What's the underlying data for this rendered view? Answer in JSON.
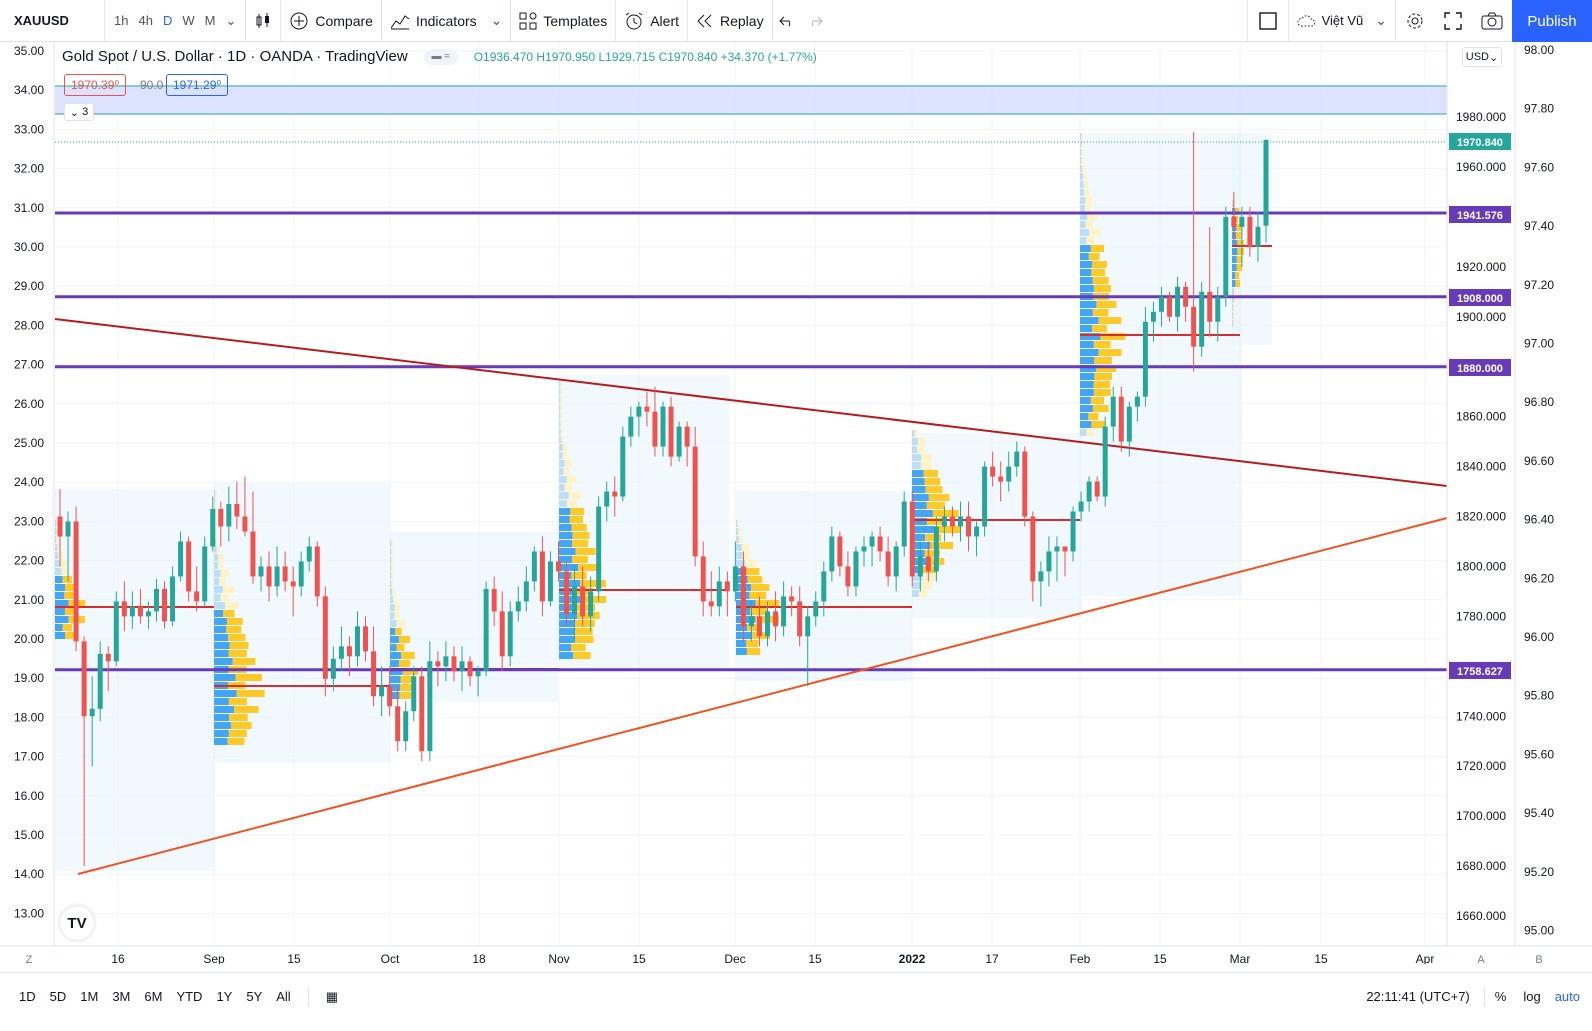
{
  "toolbar": {
    "symbol": "XAUUSD",
    "intervals": [
      "1h",
      "4h",
      "D",
      "W",
      "M"
    ],
    "active_interval": "D",
    "compare_label": "Compare",
    "indicators_label": "Indicators",
    "templates_label": "Templates",
    "alert_label": "Alert",
    "replay_label": "Replay",
    "account_label": "Việt Vũ",
    "publish_label": "Publish"
  },
  "legend": {
    "name": "Gold Spot / U.S. Dollar · 1D · OANDA · TradingView",
    "open": "O1936.470",
    "high": "H1970.950",
    "low": "L1929.715",
    "close": "C1970.840",
    "change": "+34.370 (+1.77%)",
    "bid": "1970.39⁰",
    "spread": "90.0",
    "ask": "1971.29⁰",
    "collapse_count": "3"
  },
  "currency_button": "USD",
  "colors": {
    "up": "#26a69a",
    "down": "#ef5350",
    "level_line": "#673ab7",
    "trend_upper": "#b71c1c",
    "trend_lower": "#f4511e",
    "accent": "#2962ff"
  },
  "axes": {
    "left_ticks": [
      "35.00",
      "34.00",
      "33.00",
      "32.00",
      "31.00",
      "30.00",
      "29.00",
      "28.00",
      "27.00",
      "26.00",
      "25.00",
      "24.00",
      "23.00",
      "22.00",
      "21.00",
      "20.00",
      "19.00",
      "18.00",
      "17.00",
      "16.00",
      "15.00",
      "14.00",
      "13.00"
    ],
    "right_outer_ticks": [
      "98.00",
      "97.80",
      "97.60",
      "97.40",
      "97.20",
      "97.00",
      "96.80",
      "96.60",
      "96.40",
      "96.20",
      "96.00",
      "95.80",
      "95.60",
      "95.40",
      "95.20",
      "95.00"
    ],
    "price_ticks": [
      "1980.000",
      "1960.000",
      "1920.000",
      "1900.000",
      "1860.000",
      "1840.000",
      "1820.000",
      "1800.000",
      "1780.000",
      "1760.000",
      "1740.000",
      "1720.000",
      "1700.000",
      "1680.000",
      "1660.000"
    ],
    "time_ticks": [
      "16",
      "Sep",
      "15",
      "Oct",
      "18",
      "Nov",
      "15",
      "Dec",
      "15",
      "2022",
      "17",
      "Feb",
      "15",
      "Mar",
      "15",
      "Apr"
    ],
    "left_corner": "Z",
    "right_corner_a": "A",
    "right_corner_b": "B"
  },
  "price_labels": {
    "last": "1970.840",
    "l1941": "1941.576",
    "l1908": "1908.000",
    "l1880": "1880.000",
    "l1758": "1758.627"
  },
  "chart_data": {
    "type": "candlestick",
    "title": "Gold Spot / U.S. Dollar · 1D · OANDA · TradingView",
    "ylim": [
      1650,
      2000
    ],
    "horizontal_levels": [
      1941.576,
      1908.0,
      1880.0,
      1758.627
    ],
    "candles": [
      {
        "o": 1820,
        "h": 1831,
        "l": 1800,
        "c": 1812
      },
      {
        "o": 1812,
        "h": 1822,
        "l": 1794,
        "c": 1818
      },
      {
        "o": 1818,
        "h": 1824,
        "l": 1766,
        "c": 1770
      },
      {
        "o": 1770,
        "h": 1772,
        "l": 1680,
        "c": 1740
      },
      {
        "o": 1740,
        "h": 1756,
        "l": 1720,
        "c": 1743
      },
      {
        "o": 1743,
        "h": 1770,
        "l": 1738,
        "c": 1765
      },
      {
        "o": 1765,
        "h": 1768,
        "l": 1750,
        "c": 1762
      },
      {
        "o": 1762,
        "h": 1790,
        "l": 1760,
        "c": 1786
      },
      {
        "o": 1786,
        "h": 1794,
        "l": 1774,
        "c": 1780
      },
      {
        "o": 1780,
        "h": 1790,
        "l": 1775,
        "c": 1784
      },
      {
        "o": 1784,
        "h": 1791,
        "l": 1777,
        "c": 1780
      },
      {
        "o": 1780,
        "h": 1786,
        "l": 1775,
        "c": 1782
      },
      {
        "o": 1782,
        "h": 1795,
        "l": 1778,
        "c": 1791
      },
      {
        "o": 1791,
        "h": 1794,
        "l": 1775,
        "c": 1778
      },
      {
        "o": 1778,
        "h": 1800,
        "l": 1776,
        "c": 1796
      },
      {
        "o": 1796,
        "h": 1814,
        "l": 1794,
        "c": 1810
      },
      {
        "o": 1810,
        "h": 1812,
        "l": 1786,
        "c": 1790
      },
      {
        "o": 1790,
        "h": 1800,
        "l": 1782,
        "c": 1786
      },
      {
        "o": 1786,
        "h": 1812,
        "l": 1784,
        "c": 1808
      },
      {
        "o": 1808,
        "h": 1828,
        "l": 1806,
        "c": 1823
      },
      {
        "o": 1823,
        "h": 1826,
        "l": 1808,
        "c": 1816
      },
      {
        "o": 1816,
        "h": 1832,
        "l": 1810,
        "c": 1825
      },
      {
        "o": 1825,
        "h": 1834,
        "l": 1815,
        "c": 1820
      },
      {
        "o": 1820,
        "h": 1836,
        "l": 1812,
        "c": 1814
      },
      {
        "o": 1814,
        "h": 1830,
        "l": 1793,
        "c": 1796
      },
      {
        "o": 1796,
        "h": 1804,
        "l": 1790,
        "c": 1800
      },
      {
        "o": 1800,
        "h": 1806,
        "l": 1786,
        "c": 1792
      },
      {
        "o": 1792,
        "h": 1808,
        "l": 1788,
        "c": 1800
      },
      {
        "o": 1800,
        "h": 1806,
        "l": 1790,
        "c": 1794
      },
      {
        "o": 1794,
        "h": 1800,
        "l": 1780,
        "c": 1792
      },
      {
        "o": 1792,
        "h": 1806,
        "l": 1788,
        "c": 1802
      },
      {
        "o": 1802,
        "h": 1812,
        "l": 1798,
        "c": 1808
      },
      {
        "o": 1808,
        "h": 1810,
        "l": 1784,
        "c": 1788
      },
      {
        "o": 1788,
        "h": 1792,
        "l": 1748,
        "c": 1755
      },
      {
        "o": 1755,
        "h": 1768,
        "l": 1750,
        "c": 1763
      },
      {
        "o": 1763,
        "h": 1776,
        "l": 1758,
        "c": 1768
      },
      {
        "o": 1768,
        "h": 1772,
        "l": 1756,
        "c": 1764
      },
      {
        "o": 1764,
        "h": 1782,
        "l": 1760,
        "c": 1776
      },
      {
        "o": 1776,
        "h": 1780,
        "l": 1762,
        "c": 1766
      },
      {
        "o": 1766,
        "h": 1776,
        "l": 1744,
        "c": 1748
      },
      {
        "o": 1748,
        "h": 1760,
        "l": 1740,
        "c": 1752
      },
      {
        "o": 1752,
        "h": 1760,
        "l": 1740,
        "c": 1744
      },
      {
        "o": 1744,
        "h": 1752,
        "l": 1726,
        "c": 1730
      },
      {
        "o": 1730,
        "h": 1746,
        "l": 1726,
        "c": 1742
      },
      {
        "o": 1742,
        "h": 1760,
        "l": 1738,
        "c": 1756
      },
      {
        "o": 1756,
        "h": 1760,
        "l": 1722,
        "c": 1726
      },
      {
        "o": 1726,
        "h": 1770,
        "l": 1722,
        "c": 1762
      },
      {
        "o": 1762,
        "h": 1766,
        "l": 1752,
        "c": 1760
      },
      {
        "o": 1760,
        "h": 1770,
        "l": 1754,
        "c": 1764
      },
      {
        "o": 1764,
        "h": 1768,
        "l": 1754,
        "c": 1758
      },
      {
        "o": 1758,
        "h": 1768,
        "l": 1750,
        "c": 1762
      },
      {
        "o": 1762,
        "h": 1764,
        "l": 1752,
        "c": 1756
      },
      {
        "o": 1756,
        "h": 1760,
        "l": 1748,
        "c": 1758
      },
      {
        "o": 1758,
        "h": 1794,
        "l": 1756,
        "c": 1791
      },
      {
        "o": 1791,
        "h": 1796,
        "l": 1776,
        "c": 1782
      },
      {
        "o": 1782,
        "h": 1790,
        "l": 1758,
        "c": 1764
      },
      {
        "o": 1764,
        "h": 1786,
        "l": 1760,
        "c": 1782
      },
      {
        "o": 1782,
        "h": 1792,
        "l": 1778,
        "c": 1786
      },
      {
        "o": 1786,
        "h": 1800,
        "l": 1782,
        "c": 1794
      },
      {
        "o": 1794,
        "h": 1808,
        "l": 1790,
        "c": 1806
      },
      {
        "o": 1806,
        "h": 1812,
        "l": 1780,
        "c": 1786
      },
      {
        "o": 1786,
        "h": 1806,
        "l": 1784,
        "c": 1802
      },
      {
        "o": 1802,
        "h": 1810,
        "l": 1794,
        "c": 1798
      },
      {
        "o": 1798,
        "h": 1802,
        "l": 1776,
        "c": 1781
      },
      {
        "o": 1781,
        "h": 1800,
        "l": 1770,
        "c": 1792
      },
      {
        "o": 1792,
        "h": 1800,
        "l": 1776,
        "c": 1780
      },
      {
        "o": 1780,
        "h": 1796,
        "l": 1774,
        "c": 1790
      },
      {
        "o": 1790,
        "h": 1828,
        "l": 1786,
        "c": 1824
      },
      {
        "o": 1824,
        "h": 1834,
        "l": 1818,
        "c": 1830
      },
      {
        "o": 1830,
        "h": 1836,
        "l": 1820,
        "c": 1828
      },
      {
        "o": 1828,
        "h": 1856,
        "l": 1826,
        "c": 1852
      },
      {
        "o": 1852,
        "h": 1864,
        "l": 1848,
        "c": 1860
      },
      {
        "o": 1860,
        "h": 1866,
        "l": 1852,
        "c": 1864
      },
      {
        "o": 1864,
        "h": 1870,
        "l": 1856,
        "c": 1862
      },
      {
        "o": 1862,
        "h": 1872,
        "l": 1844,
        "c": 1848
      },
      {
        "o": 1848,
        "h": 1866,
        "l": 1844,
        "c": 1864
      },
      {
        "o": 1864,
        "h": 1868,
        "l": 1840,
        "c": 1844
      },
      {
        "o": 1844,
        "h": 1858,
        "l": 1842,
        "c": 1856
      },
      {
        "o": 1856,
        "h": 1858,
        "l": 1840,
        "c": 1848
      },
      {
        "o": 1848,
        "h": 1856,
        "l": 1800,
        "c": 1804
      },
      {
        "o": 1804,
        "h": 1810,
        "l": 1780,
        "c": 1786
      },
      {
        "o": 1786,
        "h": 1798,
        "l": 1780,
        "c": 1784
      },
      {
        "o": 1784,
        "h": 1800,
        "l": 1780,
        "c": 1794
      },
      {
        "o": 1794,
        "h": 1798,
        "l": 1780,
        "c": 1790
      },
      {
        "o": 1790,
        "h": 1810,
        "l": 1786,
        "c": 1800
      },
      {
        "o": 1800,
        "h": 1806,
        "l": 1770,
        "c": 1776
      },
      {
        "o": 1776,
        "h": 1786,
        "l": 1770,
        "c": 1780
      },
      {
        "o": 1780,
        "h": 1788,
        "l": 1768,
        "c": 1772
      },
      {
        "o": 1772,
        "h": 1786,
        "l": 1768,
        "c": 1782
      },
      {
        "o": 1782,
        "h": 1790,
        "l": 1770,
        "c": 1776
      },
      {
        "o": 1776,
        "h": 1794,
        "l": 1772,
        "c": 1788
      },
      {
        "o": 1788,
        "h": 1792,
        "l": 1780,
        "c": 1786
      },
      {
        "o": 1786,
        "h": 1792,
        "l": 1768,
        "c": 1772
      },
      {
        "o": 1772,
        "h": 1784,
        "l": 1752,
        "c": 1780
      },
      {
        "o": 1780,
        "h": 1790,
        "l": 1776,
        "c": 1786
      },
      {
        "o": 1786,
        "h": 1802,
        "l": 1780,
        "c": 1798
      },
      {
        "o": 1798,
        "h": 1816,
        "l": 1794,
        "c": 1812
      },
      {
        "o": 1812,
        "h": 1814,
        "l": 1796,
        "c": 1800
      },
      {
        "o": 1800,
        "h": 1806,
        "l": 1788,
        "c": 1792
      },
      {
        "o": 1792,
        "h": 1808,
        "l": 1788,
        "c": 1806
      },
      {
        "o": 1806,
        "h": 1812,
        "l": 1800,
        "c": 1808
      },
      {
        "o": 1808,
        "h": 1814,
        "l": 1800,
        "c": 1812
      },
      {
        "o": 1812,
        "h": 1816,
        "l": 1802,
        "c": 1806
      },
      {
        "o": 1806,
        "h": 1812,
        "l": 1792,
        "c": 1796
      },
      {
        "o": 1796,
        "h": 1810,
        "l": 1790,
        "c": 1808
      },
      {
        "o": 1808,
        "h": 1830,
        "l": 1804,
        "c": 1826
      },
      {
        "o": 1826,
        "h": 1830,
        "l": 1792,
        "c": 1796
      },
      {
        "o": 1796,
        "h": 1810,
        "l": 1790,
        "c": 1804
      },
      {
        "o": 1804,
        "h": 1810,
        "l": 1794,
        "c": 1798
      },
      {
        "o": 1798,
        "h": 1820,
        "l": 1794,
        "c": 1816
      },
      {
        "o": 1816,
        "h": 1824,
        "l": 1810,
        "c": 1820
      },
      {
        "o": 1820,
        "h": 1824,
        "l": 1812,
        "c": 1816
      },
      {
        "o": 1816,
        "h": 1826,
        "l": 1810,
        "c": 1820
      },
      {
        "o": 1820,
        "h": 1826,
        "l": 1806,
        "c": 1812
      },
      {
        "o": 1812,
        "h": 1818,
        "l": 1804,
        "c": 1816
      },
      {
        "o": 1816,
        "h": 1842,
        "l": 1812,
        "c": 1840
      },
      {
        "o": 1840,
        "h": 1846,
        "l": 1832,
        "c": 1836
      },
      {
        "o": 1836,
        "h": 1842,
        "l": 1826,
        "c": 1834
      },
      {
        "o": 1834,
        "h": 1846,
        "l": 1830,
        "c": 1840
      },
      {
        "o": 1840,
        "h": 1850,
        "l": 1836,
        "c": 1846
      },
      {
        "o": 1846,
        "h": 1848,
        "l": 1816,
        "c": 1820
      },
      {
        "o": 1820,
        "h": 1822,
        "l": 1786,
        "c": 1794
      },
      {
        "o": 1794,
        "h": 1802,
        "l": 1784,
        "c": 1798
      },
      {
        "o": 1798,
        "h": 1812,
        "l": 1792,
        "c": 1806
      },
      {
        "o": 1806,
        "h": 1812,
        "l": 1794,
        "c": 1808
      },
      {
        "o": 1808,
        "h": 1808,
        "l": 1796,
        "c": 1806
      },
      {
        "o": 1806,
        "h": 1824,
        "l": 1802,
        "c": 1822
      },
      {
        "o": 1822,
        "h": 1830,
        "l": 1818,
        "c": 1826
      },
      {
        "o": 1826,
        "h": 1836,
        "l": 1822,
        "c": 1834
      },
      {
        "o": 1834,
        "h": 1836,
        "l": 1826,
        "c": 1828
      },
      {
        "o": 1828,
        "h": 1860,
        "l": 1824,
        "c": 1856
      },
      {
        "o": 1856,
        "h": 1872,
        "l": 1850,
        "c": 1868
      },
      {
        "o": 1868,
        "h": 1872,
        "l": 1846,
        "c": 1850
      },
      {
        "o": 1850,
        "h": 1866,
        "l": 1844,
        "c": 1864
      },
      {
        "o": 1864,
        "h": 1870,
        "l": 1858,
        "c": 1868
      },
      {
        "o": 1868,
        "h": 1904,
        "l": 1864,
        "c": 1898
      },
      {
        "o": 1898,
        "h": 1906,
        "l": 1890,
        "c": 1902
      },
      {
        "o": 1902,
        "h": 1912,
        "l": 1896,
        "c": 1908
      },
      {
        "o": 1908,
        "h": 1910,
        "l": 1898,
        "c": 1900
      },
      {
        "o": 1900,
        "h": 1916,
        "l": 1894,
        "c": 1912
      },
      {
        "o": 1912,
        "h": 1914,
        "l": 1898,
        "c": 1904
      },
      {
        "o": 1904,
        "h": 1974,
        "l": 1878,
        "c": 1888
      },
      {
        "o": 1888,
        "h": 1914,
        "l": 1884,
        "c": 1910
      },
      {
        "o": 1910,
        "h": 1936,
        "l": 1892,
        "c": 1898
      },
      {
        "o": 1898,
        "h": 1912,
        "l": 1890,
        "c": 1908
      },
      {
        "o": 1908,
        "h": 1944,
        "l": 1904,
        "c": 1940
      },
      {
        "o": 1940,
        "h": 1950,
        "l": 1930,
        "c": 1936
      },
      {
        "o": 1936,
        "h": 1944,
        "l": 1920,
        "c": 1940
      },
      {
        "o": 1940,
        "h": 1944,
        "l": 1924,
        "c": 1928
      },
      {
        "o": 1928,
        "h": 1942,
        "l": 1922,
        "c": 1936
      },
      {
        "o": 1936.47,
        "h": 1970.95,
        "l": 1929.715,
        "c": 1970.84
      }
    ]
  }
}
